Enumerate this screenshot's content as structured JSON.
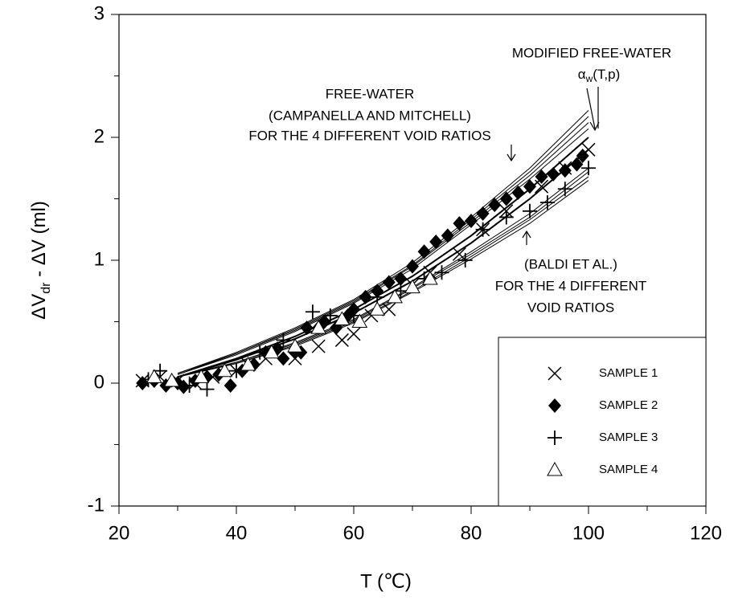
{
  "chart_data": {
    "type": "scatter",
    "x_label": "T (℃)",
    "y_label": [
      "ΔV",
      "dr",
      " - ΔV (ml)"
    ],
    "xlim": [
      20,
      120
    ],
    "xticks": [
      20,
      40,
      60,
      80,
      100,
      120
    ],
    "xminorticks": [
      30,
      50,
      70,
      90,
      110
    ],
    "ylim": [
      -1,
      3
    ],
    "yticks": [
      -1,
      0,
      1,
      2,
      3
    ],
    "yminorticks": [
      -0.5,
      0.5,
      1.5,
      2.5
    ],
    "legend": "lower right",
    "series": [
      {
        "name": "SAMPLE 1",
        "marker": "x",
        "color": "#000000",
        "x": [
          24,
          27,
          30,
          33,
          36,
          40,
          42,
          45,
          50,
          54,
          58,
          60,
          63,
          66,
          70,
          73,
          78,
          82,
          86,
          92,
          96,
          100
        ],
        "values": [
          0.02,
          0.05,
          0.02,
          0,
          0.05,
          0.1,
          0.15,
          0.2,
          0.2,
          0.3,
          0.35,
          0.4,
          0.55,
          0.6,
          0.8,
          0.9,
          1.05,
          1.25,
          1.4,
          1.6,
          1.75,
          1.9
        ]
      },
      {
        "name": "SAMPLE 2",
        "marker": "diamond",
        "color": "#000000",
        "x": [
          24,
          26,
          28,
          30,
          31,
          33,
          35,
          37,
          39,
          41,
          43,
          45,
          47,
          48,
          50,
          51,
          52,
          54,
          55,
          57,
          59,
          60,
          62,
          64,
          66,
          68,
          70,
          72,
          74,
          76,
          78,
          80,
          82,
          84,
          86,
          88,
          90,
          92,
          94,
          96,
          98,
          99
        ],
        "values": [
          0,
          0.02,
          -0.02,
          0,
          -0.03,
          0.02,
          0.05,
          0.07,
          -0.02,
          0.1,
          0.15,
          0.25,
          0.28,
          0.2,
          0.25,
          0.25,
          0.45,
          0.45,
          0.5,
          0.45,
          0.55,
          0.6,
          0.7,
          0.75,
          0.82,
          0.85,
          0.95,
          1.07,
          1.15,
          1.2,
          1.3,
          1.32,
          1.38,
          1.45,
          1.5,
          1.55,
          1.6,
          1.68,
          1.7,
          1.73,
          1.78,
          1.85
        ]
      },
      {
        "name": "SAMPLE 3",
        "marker": "plus",
        "color": "#000000",
        "x": [
          25,
          27,
          32,
          35,
          40,
          44,
          48,
          53,
          56,
          60,
          64,
          68,
          72,
          75,
          79,
          82,
          86,
          90,
          93,
          96,
          100
        ],
        "values": [
          0.03,
          0.1,
          -0.02,
          -0.05,
          0.1,
          0.25,
          0.35,
          0.58,
          0.55,
          0.55,
          0.7,
          0.75,
          0.85,
          0.9,
          1,
          1.25,
          1.35,
          1.4,
          1.47,
          1.58,
          1.75
        ]
      },
      {
        "name": "SAMPLE 4",
        "marker": "triangle",
        "color": "#000000",
        "x": [
          26,
          29,
          34,
          38,
          42,
          46,
          50,
          54,
          58,
          61,
          64,
          67,
          70,
          73
        ],
        "values": [
          0.05,
          0.02,
          0.05,
          0.1,
          0.15,
          0.25,
          0.3,
          0.45,
          0.52,
          0.5,
          0.6,
          0.7,
          0.78,
          0.85
        ]
      }
    ],
    "curves": [
      {
        "width": 1,
        "x": [
          30,
          40,
          50,
          60,
          70,
          80,
          90,
          100
        ],
        "values": [
          0.08,
          0.25,
          0.45,
          0.68,
          0.98,
          1.35,
          1.75,
          2.22
        ]
      },
      {
        "width": 1,
        "x": [
          30,
          40,
          50,
          60,
          70,
          80,
          90,
          100
        ],
        "values": [
          0.08,
          0.24,
          0.44,
          0.67,
          0.96,
          1.33,
          1.72,
          2.17
        ]
      },
      {
        "width": 1,
        "x": [
          30,
          40,
          50,
          60,
          70,
          80,
          90,
          100
        ],
        "values": [
          0.07,
          0.24,
          0.43,
          0.66,
          0.95,
          1.31,
          1.69,
          2.12
        ]
      },
      {
        "width": 1,
        "x": [
          30,
          40,
          50,
          60,
          70,
          80,
          90,
          100
        ],
        "values": [
          0.07,
          0.23,
          0.42,
          0.65,
          0.93,
          1.29,
          1.66,
          2.07
        ]
      },
      {
        "width": 1,
        "x": [
          30,
          40,
          50,
          60,
          70,
          80,
          90,
          100
        ],
        "values": [
          0.05,
          0.17,
          0.33,
          0.52,
          0.78,
          1.07,
          1.38,
          1.75
        ]
      },
      {
        "width": 1,
        "x": [
          30,
          40,
          50,
          60,
          70,
          80,
          90,
          100
        ],
        "values": [
          0.05,
          0.17,
          0.32,
          0.51,
          0.77,
          1.05,
          1.35,
          1.72
        ]
      },
      {
        "width": 1,
        "x": [
          30,
          40,
          50,
          60,
          70,
          80,
          90,
          100
        ],
        "values": [
          0.05,
          0.16,
          0.31,
          0.5,
          0.75,
          1.03,
          1.33,
          1.68
        ]
      },
      {
        "width": 1,
        "x": [
          30,
          40,
          50,
          60,
          70,
          80,
          90,
          100
        ],
        "values": [
          0.05,
          0.16,
          0.3,
          0.49,
          0.74,
          1.01,
          1.3,
          1.65
        ]
      },
      {
        "width": 2,
        "x": [
          30,
          40,
          50,
          60,
          70,
          80,
          90,
          100
        ],
        "values": [
          0.05,
          0.2,
          0.38,
          0.6,
          0.87,
          1.2,
          1.58,
          2
        ]
      },
      {
        "width": 2,
        "x": [
          30,
          40,
          50,
          60,
          70,
          80,
          90,
          100
        ],
        "values": [
          0.05,
          0.19,
          0.36,
          0.57,
          0.83,
          1.14,
          1.5,
          1.9
        ]
      }
    ],
    "annotations": [
      "MODIFIED FREE-WATER",
      "FREE-WATER",
      "(CAMPANELLA AND MITCHELL)",
      "FOR THE 4 DIFFERENT VOID RATIOS",
      "(BALDI ET AL.)",
      "FOR THE 4 DIFFERENT",
      "VOID RATIOS"
    ],
    "symbol_label": [
      "α",
      "w",
      "(T,p)"
    ]
  }
}
